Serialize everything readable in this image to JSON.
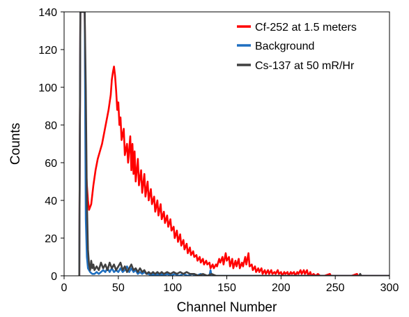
{
  "chart_data": {
    "type": "line",
    "title": "",
    "xlabel": "Channel Number",
    "ylabel": "Counts",
    "xlim": [
      0,
      300
    ],
    "ylim": [
      0,
      140
    ],
    "xticks": [
      0,
      50,
      100,
      150,
      200,
      250,
      300
    ],
    "yticks": [
      0,
      20,
      40,
      60,
      80,
      100,
      120,
      140
    ],
    "grid": false,
    "legend_position": "top-right",
    "series": [
      {
        "name": "Cf-252 at 1.5 meters",
        "color": "#ff0000",
        "points": [
          [
            14,
            0
          ],
          [
            15,
            140
          ],
          [
            17,
            140
          ],
          [
            18,
            140
          ],
          [
            19,
            140
          ],
          [
            20,
            60
          ],
          [
            21,
            48
          ],
          [
            22,
            40
          ],
          [
            23,
            35
          ],
          [
            25,
            38
          ],
          [
            27,
            48
          ],
          [
            29,
            56
          ],
          [
            31,
            62
          ],
          [
            33,
            66
          ],
          [
            35,
            70
          ],
          [
            37,
            76
          ],
          [
            39,
            82
          ],
          [
            41,
            88
          ],
          [
            43,
            96
          ],
          [
            44,
            104
          ],
          [
            45,
            108
          ],
          [
            46,
            111
          ],
          [
            47,
            106
          ],
          [
            48,
            98
          ],
          [
            49,
            88
          ],
          [
            50,
            92
          ],
          [
            51,
            80
          ],
          [
            52,
            84
          ],
          [
            53,
            72
          ],
          [
            55,
            78
          ],
          [
            56,
            64
          ],
          [
            58,
            70
          ],
          [
            59,
            60
          ],
          [
            61,
            74
          ],
          [
            62,
            56
          ],
          [
            63,
            70
          ],
          [
            64,
            54
          ],
          [
            65,
            66
          ],
          [
            66,
            50
          ],
          [
            68,
            62
          ],
          [
            69,
            48
          ],
          [
            71,
            56
          ],
          [
            72,
            44
          ],
          [
            74,
            54
          ],
          [
            75,
            42
          ],
          [
            77,
            50
          ],
          [
            78,
            40
          ],
          [
            80,
            46
          ],
          [
            81,
            38
          ],
          [
            83,
            42
          ],
          [
            84,
            34
          ],
          [
            86,
            40
          ],
          [
            87,
            32
          ],
          [
            89,
            38
          ],
          [
            90,
            30
          ],
          [
            92,
            34
          ],
          [
            93,
            28
          ],
          [
            95,
            32
          ],
          [
            96,
            26
          ],
          [
            98,
            30
          ],
          [
            99,
            24
          ],
          [
            101,
            26
          ],
          [
            102,
            20
          ],
          [
            104,
            24
          ],
          [
            105,
            18
          ],
          [
            107,
            22
          ],
          [
            108,
            16
          ],
          [
            110,
            19
          ],
          [
            111,
            14
          ],
          [
            113,
            17
          ],
          [
            114,
            12
          ],
          [
            116,
            15
          ],
          [
            117,
            11
          ],
          [
            119,
            13
          ],
          [
            120,
            10
          ],
          [
            122,
            11
          ],
          [
            123,
            8
          ],
          [
            125,
            10
          ],
          [
            126,
            7
          ],
          [
            128,
            9
          ],
          [
            129,
            6
          ],
          [
            131,
            8
          ],
          [
            132,
            6
          ],
          [
            134,
            7
          ],
          [
            135,
            4
          ],
          [
            137,
            6
          ],
          [
            138,
            4
          ],
          [
            140,
            6
          ],
          [
            141,
            5
          ],
          [
            143,
            9
          ],
          [
            144,
            7
          ],
          [
            146,
            10
          ],
          [
            147,
            6
          ],
          [
            149,
            12
          ],
          [
            150,
            8
          ],
          [
            152,
            10
          ],
          [
            153,
            5
          ],
          [
            155,
            9
          ],
          [
            156,
            4
          ],
          [
            158,
            8
          ],
          [
            159,
            5
          ],
          [
            161,
            9
          ],
          [
            162,
            4
          ],
          [
            164,
            7
          ],
          [
            165,
            5
          ],
          [
            167,
            10
          ],
          [
            168,
            6
          ],
          [
            170,
            12
          ],
          [
            171,
            5
          ],
          [
            173,
            6
          ],
          [
            174,
            3
          ],
          [
            176,
            5
          ],
          [
            177,
            2
          ],
          [
            179,
            4
          ],
          [
            180,
            2
          ],
          [
            182,
            4
          ],
          [
            183,
            1
          ],
          [
            185,
            3
          ],
          [
            186,
            1
          ],
          [
            188,
            3
          ],
          [
            189,
            1
          ],
          [
            191,
            3
          ],
          [
            192,
            1
          ],
          [
            194,
            2
          ],
          [
            195,
            1
          ],
          [
            197,
            3
          ],
          [
            198,
            1
          ],
          [
            200,
            2
          ],
          [
            201,
            0
          ],
          [
            203,
            2
          ],
          [
            204,
            1
          ],
          [
            206,
            2
          ],
          [
            207,
            0
          ],
          [
            209,
            2
          ],
          [
            210,
            1
          ],
          [
            212,
            2
          ],
          [
            213,
            0
          ],
          [
            215,
            2
          ],
          [
            216,
            1
          ],
          [
            218,
            3
          ],
          [
            219,
            1
          ],
          [
            221,
            3
          ],
          [
            222,
            1
          ],
          [
            224,
            3
          ],
          [
            225,
            0
          ],
          [
            227,
            2
          ],
          [
            228,
            0
          ],
          [
            230,
            1
          ],
          [
            232,
            0
          ],
          [
            234,
            1
          ],
          [
            236,
            0
          ],
          [
            240,
            0
          ],
          [
            245,
            1
          ],
          [
            246,
            0
          ],
          [
            255,
            0
          ],
          [
            265,
            0
          ],
          [
            270,
            1
          ],
          [
            271,
            0
          ],
          [
            280,
            0
          ],
          [
            290,
            0
          ],
          [
            300,
            0
          ]
        ]
      },
      {
        "name": "Background",
        "color": "#1f6fc0",
        "points": [
          [
            14,
            0
          ],
          [
            15,
            140
          ],
          [
            16,
            140
          ],
          [
            17,
            140
          ],
          [
            18,
            140
          ],
          [
            19,
            140
          ],
          [
            19.5,
            80
          ],
          [
            20,
            30
          ],
          [
            21,
            10
          ],
          [
            22,
            4
          ],
          [
            24,
            2
          ],
          [
            26,
            1
          ],
          [
            28,
            1
          ],
          [
            30,
            2
          ],
          [
            32,
            1
          ],
          [
            34,
            2
          ],
          [
            36,
            3
          ],
          [
            38,
            2
          ],
          [
            40,
            4
          ],
          [
            42,
            2
          ],
          [
            44,
            4
          ],
          [
            46,
            2
          ],
          [
            48,
            3
          ],
          [
            50,
            2
          ],
          [
            52,
            4
          ],
          [
            54,
            2
          ],
          [
            56,
            3
          ],
          [
            58,
            5
          ],
          [
            60,
            2
          ],
          [
            62,
            4
          ],
          [
            64,
            2
          ],
          [
            66,
            3
          ],
          [
            68,
            1
          ],
          [
            70,
            2
          ],
          [
            72,
            1
          ],
          [
            74,
            2
          ],
          [
            76,
            1
          ],
          [
            78,
            1
          ],
          [
            80,
            0
          ],
          [
            82,
            1
          ],
          [
            84,
            0
          ],
          [
            86,
            1
          ],
          [
            88,
            0
          ],
          [
            90,
            1
          ],
          [
            92,
            0
          ],
          [
            95,
            1
          ],
          [
            98,
            0
          ],
          [
            102,
            1
          ],
          [
            106,
            0
          ],
          [
            110,
            1
          ],
          [
            114,
            0
          ],
          [
            118,
            1
          ],
          [
            122,
            0
          ],
          [
            126,
            1
          ],
          [
            130,
            0
          ],
          [
            134,
            0
          ],
          [
            135,
            3
          ],
          [
            136,
            0
          ],
          [
            140,
            0
          ],
          [
            150,
            0
          ],
          [
            160,
            0
          ],
          [
            170,
            0
          ],
          [
            180,
            0
          ],
          [
            200,
            0
          ],
          [
            220,
            0
          ],
          [
            240,
            0
          ],
          [
            260,
            0
          ],
          [
            280,
            0
          ],
          [
            300,
            0
          ]
        ]
      },
      {
        "name": "Cs-137 at 50 mR/Hr",
        "color": "#404040",
        "points": [
          [
            14,
            0
          ],
          [
            15,
            140
          ],
          [
            16,
            140
          ],
          [
            17,
            140
          ],
          [
            18,
            140
          ],
          [
            19,
            140
          ],
          [
            20,
            100
          ],
          [
            21,
            40
          ],
          [
            22,
            14
          ],
          [
            23,
            6
          ],
          [
            24,
            3
          ],
          [
            25,
            8
          ],
          [
            26,
            4
          ],
          [
            27,
            6
          ],
          [
            28,
            3
          ],
          [
            30,
            5
          ],
          [
            32,
            3
          ],
          [
            34,
            7
          ],
          [
            36,
            4
          ],
          [
            38,
            6
          ],
          [
            40,
            3
          ],
          [
            42,
            7
          ],
          [
            44,
            4
          ],
          [
            46,
            6
          ],
          [
            48,
            3
          ],
          [
            50,
            5
          ],
          [
            52,
            7
          ],
          [
            54,
            3
          ],
          [
            56,
            5
          ],
          [
            58,
            2
          ],
          [
            60,
            4
          ],
          [
            62,
            6
          ],
          [
            64,
            3
          ],
          [
            66,
            4
          ],
          [
            68,
            2
          ],
          [
            70,
            4
          ],
          [
            72,
            2
          ],
          [
            74,
            3
          ],
          [
            76,
            1
          ],
          [
            78,
            2
          ],
          [
            80,
            1
          ],
          [
            82,
            2
          ],
          [
            84,
            1
          ],
          [
            86,
            2
          ],
          [
            88,
            1
          ],
          [
            90,
            2
          ],
          [
            92,
            1
          ],
          [
            95,
            2
          ],
          [
            98,
            1
          ],
          [
            101,
            2
          ],
          [
            104,
            1
          ],
          [
            107,
            2
          ],
          [
            110,
            1
          ],
          [
            113,
            2
          ],
          [
            116,
            1
          ],
          [
            120,
            1
          ],
          [
            124,
            0
          ],
          [
            128,
            1
          ],
          [
            132,
            0
          ],
          [
            136,
            1
          ],
          [
            140,
            0
          ],
          [
            145,
            0
          ],
          [
            150,
            0
          ],
          [
            160,
            0
          ],
          [
            170,
            0
          ],
          [
            180,
            0
          ],
          [
            190,
            0
          ],
          [
            200,
            0
          ],
          [
            220,
            0
          ],
          [
            240,
            0
          ],
          [
            260,
            0
          ],
          [
            272,
            0
          ],
          [
            273,
            1
          ],
          [
            274,
            0
          ],
          [
            280,
            0
          ],
          [
            300,
            0
          ]
        ]
      }
    ]
  }
}
